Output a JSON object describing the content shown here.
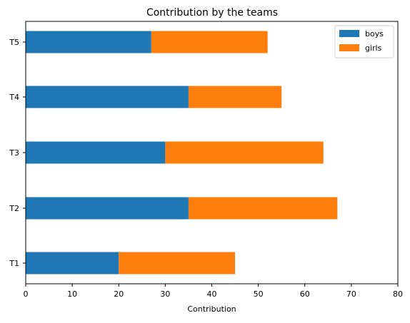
{
  "chart_data": {
    "type": "bar",
    "orientation": "horizontal",
    "stacked": true,
    "title": "Contribution by the teams",
    "xlabel": "Contribution",
    "ylabel": "",
    "categories": [
      "T1",
      "T2",
      "T3",
      "T4",
      "T5"
    ],
    "series": [
      {
        "name": "boys",
        "color": "#1f77b4",
        "values": [
          20,
          35,
          30,
          35,
          27
        ]
      },
      {
        "name": "girls",
        "color": "#ff7f0e",
        "values": [
          25,
          32,
          34,
          20,
          25
        ]
      }
    ],
    "xlim": [
      0,
      80
    ],
    "xticks": [
      "0",
      "10",
      "20",
      "30",
      "40",
      "50",
      "60",
      "70",
      "80"
    ],
    "grid": false,
    "legend": "top-right"
  }
}
